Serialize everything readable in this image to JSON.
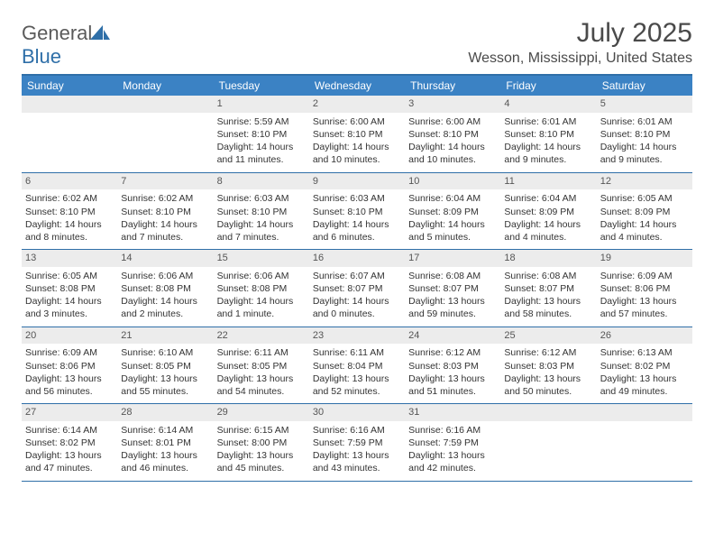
{
  "brand": {
    "part1": "General",
    "part2": "Blue"
  },
  "title": "July 2025",
  "location": "Wesson, Mississippi, United States",
  "colors": {
    "accent": "#3b82c4",
    "border": "#2f6fa8",
    "daynum_bg": "#ececec",
    "text": "#333333"
  },
  "weekdays": [
    "Sunday",
    "Monday",
    "Tuesday",
    "Wednesday",
    "Thursday",
    "Friday",
    "Saturday"
  ],
  "weeks": [
    [
      null,
      null,
      {
        "n": "1",
        "sr": "Sunrise: 5:59 AM",
        "ss": "Sunset: 8:10 PM",
        "d1": "Daylight: 14 hours",
        "d2": "and 11 minutes."
      },
      {
        "n": "2",
        "sr": "Sunrise: 6:00 AM",
        "ss": "Sunset: 8:10 PM",
        "d1": "Daylight: 14 hours",
        "d2": "and 10 minutes."
      },
      {
        "n": "3",
        "sr": "Sunrise: 6:00 AM",
        "ss": "Sunset: 8:10 PM",
        "d1": "Daylight: 14 hours",
        "d2": "and 10 minutes."
      },
      {
        "n": "4",
        "sr": "Sunrise: 6:01 AM",
        "ss": "Sunset: 8:10 PM",
        "d1": "Daylight: 14 hours",
        "d2": "and 9 minutes."
      },
      {
        "n": "5",
        "sr": "Sunrise: 6:01 AM",
        "ss": "Sunset: 8:10 PM",
        "d1": "Daylight: 14 hours",
        "d2": "and 9 minutes."
      }
    ],
    [
      {
        "n": "6",
        "sr": "Sunrise: 6:02 AM",
        "ss": "Sunset: 8:10 PM",
        "d1": "Daylight: 14 hours",
        "d2": "and 8 minutes."
      },
      {
        "n": "7",
        "sr": "Sunrise: 6:02 AM",
        "ss": "Sunset: 8:10 PM",
        "d1": "Daylight: 14 hours",
        "d2": "and 7 minutes."
      },
      {
        "n": "8",
        "sr": "Sunrise: 6:03 AM",
        "ss": "Sunset: 8:10 PM",
        "d1": "Daylight: 14 hours",
        "d2": "and 7 minutes."
      },
      {
        "n": "9",
        "sr": "Sunrise: 6:03 AM",
        "ss": "Sunset: 8:10 PM",
        "d1": "Daylight: 14 hours",
        "d2": "and 6 minutes."
      },
      {
        "n": "10",
        "sr": "Sunrise: 6:04 AM",
        "ss": "Sunset: 8:09 PM",
        "d1": "Daylight: 14 hours",
        "d2": "and 5 minutes."
      },
      {
        "n": "11",
        "sr": "Sunrise: 6:04 AM",
        "ss": "Sunset: 8:09 PM",
        "d1": "Daylight: 14 hours",
        "d2": "and 4 minutes."
      },
      {
        "n": "12",
        "sr": "Sunrise: 6:05 AM",
        "ss": "Sunset: 8:09 PM",
        "d1": "Daylight: 14 hours",
        "d2": "and 4 minutes."
      }
    ],
    [
      {
        "n": "13",
        "sr": "Sunrise: 6:05 AM",
        "ss": "Sunset: 8:08 PM",
        "d1": "Daylight: 14 hours",
        "d2": "and 3 minutes."
      },
      {
        "n": "14",
        "sr": "Sunrise: 6:06 AM",
        "ss": "Sunset: 8:08 PM",
        "d1": "Daylight: 14 hours",
        "d2": "and 2 minutes."
      },
      {
        "n": "15",
        "sr": "Sunrise: 6:06 AM",
        "ss": "Sunset: 8:08 PM",
        "d1": "Daylight: 14 hours",
        "d2": "and 1 minute."
      },
      {
        "n": "16",
        "sr": "Sunrise: 6:07 AM",
        "ss": "Sunset: 8:07 PM",
        "d1": "Daylight: 14 hours",
        "d2": "and 0 minutes."
      },
      {
        "n": "17",
        "sr": "Sunrise: 6:08 AM",
        "ss": "Sunset: 8:07 PM",
        "d1": "Daylight: 13 hours",
        "d2": "and 59 minutes."
      },
      {
        "n": "18",
        "sr": "Sunrise: 6:08 AM",
        "ss": "Sunset: 8:07 PM",
        "d1": "Daylight: 13 hours",
        "d2": "and 58 minutes."
      },
      {
        "n": "19",
        "sr": "Sunrise: 6:09 AM",
        "ss": "Sunset: 8:06 PM",
        "d1": "Daylight: 13 hours",
        "d2": "and 57 minutes."
      }
    ],
    [
      {
        "n": "20",
        "sr": "Sunrise: 6:09 AM",
        "ss": "Sunset: 8:06 PM",
        "d1": "Daylight: 13 hours",
        "d2": "and 56 minutes."
      },
      {
        "n": "21",
        "sr": "Sunrise: 6:10 AM",
        "ss": "Sunset: 8:05 PM",
        "d1": "Daylight: 13 hours",
        "d2": "and 55 minutes."
      },
      {
        "n": "22",
        "sr": "Sunrise: 6:11 AM",
        "ss": "Sunset: 8:05 PM",
        "d1": "Daylight: 13 hours",
        "d2": "and 54 minutes."
      },
      {
        "n": "23",
        "sr": "Sunrise: 6:11 AM",
        "ss": "Sunset: 8:04 PM",
        "d1": "Daylight: 13 hours",
        "d2": "and 52 minutes."
      },
      {
        "n": "24",
        "sr": "Sunrise: 6:12 AM",
        "ss": "Sunset: 8:03 PM",
        "d1": "Daylight: 13 hours",
        "d2": "and 51 minutes."
      },
      {
        "n": "25",
        "sr": "Sunrise: 6:12 AM",
        "ss": "Sunset: 8:03 PM",
        "d1": "Daylight: 13 hours",
        "d2": "and 50 minutes."
      },
      {
        "n": "26",
        "sr": "Sunrise: 6:13 AM",
        "ss": "Sunset: 8:02 PM",
        "d1": "Daylight: 13 hours",
        "d2": "and 49 minutes."
      }
    ],
    [
      {
        "n": "27",
        "sr": "Sunrise: 6:14 AM",
        "ss": "Sunset: 8:02 PM",
        "d1": "Daylight: 13 hours",
        "d2": "and 47 minutes."
      },
      {
        "n": "28",
        "sr": "Sunrise: 6:14 AM",
        "ss": "Sunset: 8:01 PM",
        "d1": "Daylight: 13 hours",
        "d2": "and 46 minutes."
      },
      {
        "n": "29",
        "sr": "Sunrise: 6:15 AM",
        "ss": "Sunset: 8:00 PM",
        "d1": "Daylight: 13 hours",
        "d2": "and 45 minutes."
      },
      {
        "n": "30",
        "sr": "Sunrise: 6:16 AM",
        "ss": "Sunset: 7:59 PM",
        "d1": "Daylight: 13 hours",
        "d2": "and 43 minutes."
      },
      {
        "n": "31",
        "sr": "Sunrise: 6:16 AM",
        "ss": "Sunset: 7:59 PM",
        "d1": "Daylight: 13 hours",
        "d2": "and 42 minutes."
      },
      null,
      null
    ]
  ]
}
